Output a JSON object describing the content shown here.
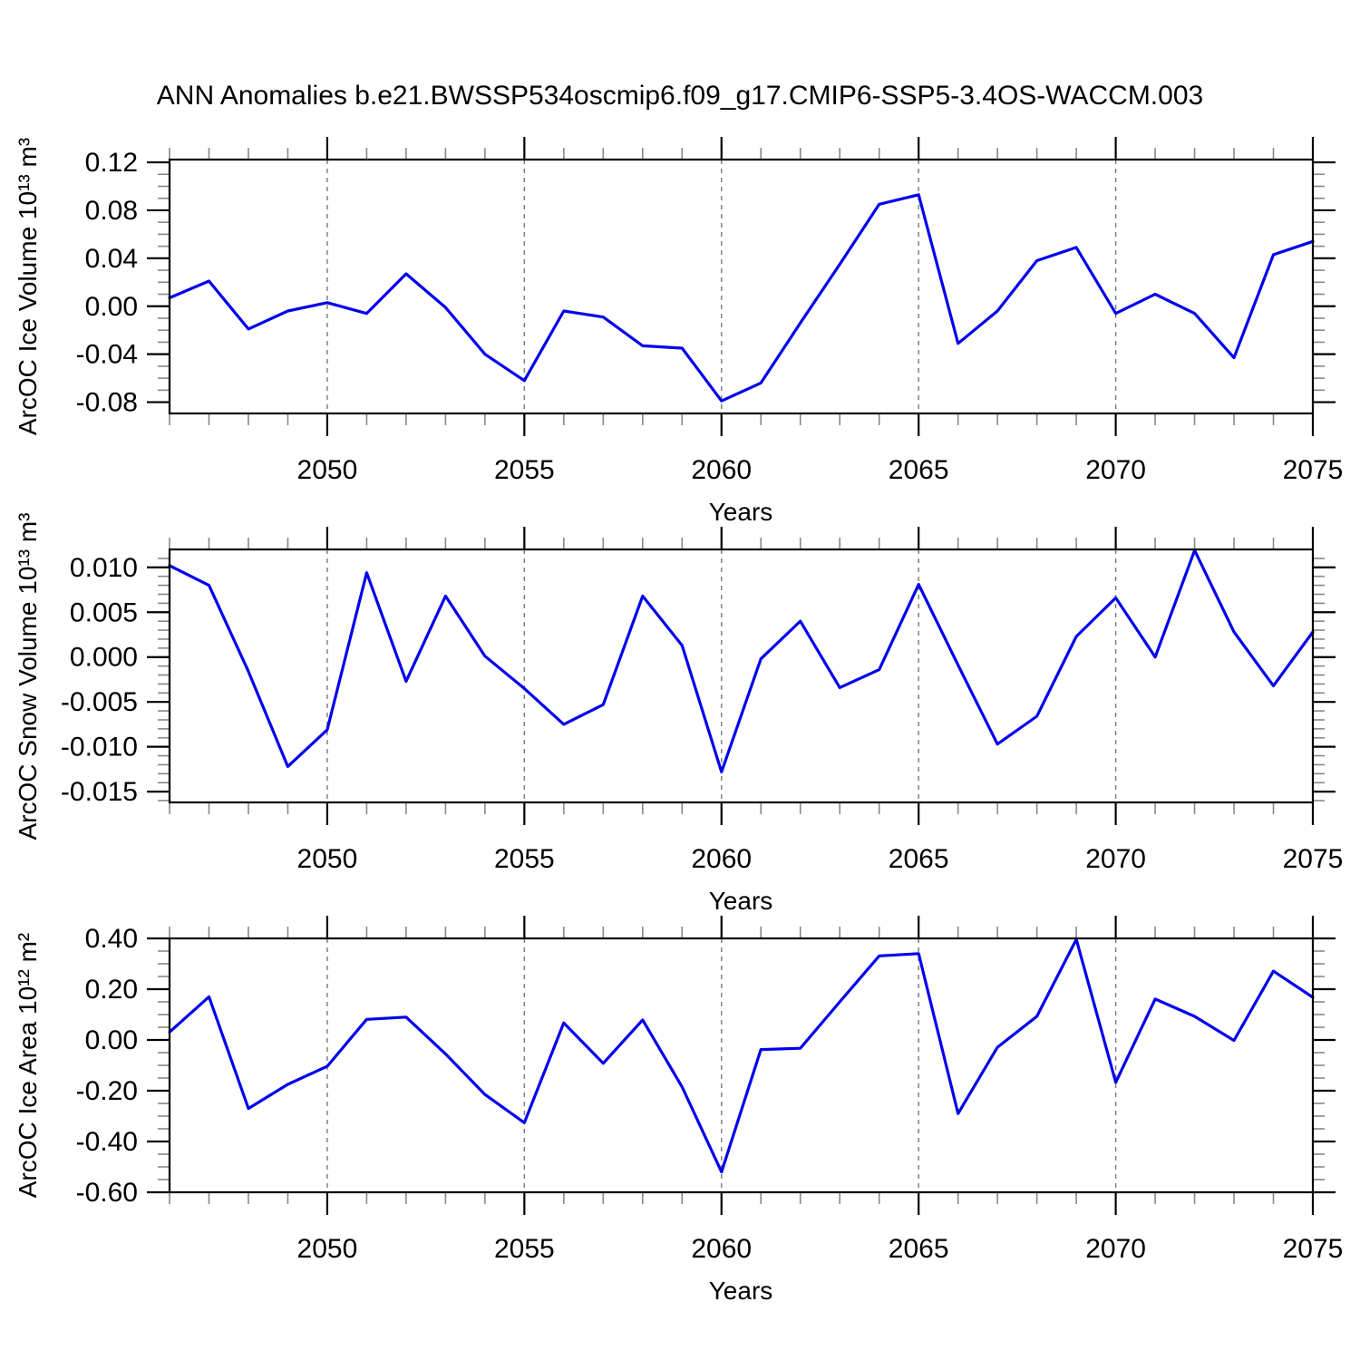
{
  "title": "ANN Anomalies b.e21.BWSSP534oscmip6.f09_g17.CMIP6-SSP5-3.4OS-WACCM.003",
  "colors": {
    "line": "#0000EE",
    "grid": "#787878",
    "frame": "#000000",
    "minor_tick": "#888888",
    "text": "#000000",
    "background": "#FFFFFF"
  },
  "chart_data": [
    {
      "type": "line",
      "name": "arcoc-ice-volume",
      "ylabel": "ArcOC Ice Volume 10¹³ m³",
      "xlabel": "Years",
      "legend": "none",
      "grid": "vertical-dashed",
      "x": [
        2046,
        2047,
        2048,
        2049,
        2050,
        2051,
        2052,
        2053,
        2054,
        2055,
        2056,
        2057,
        2058,
        2059,
        2060,
        2061,
        2062,
        2063,
        2064,
        2065,
        2066,
        2067,
        2068,
        2069,
        2070,
        2071,
        2072,
        2073,
        2074,
        2075
      ],
      "values": [
        0.007,
        0.021,
        -0.019,
        -0.004,
        0.003,
        -0.006,
        0.027,
        -0.001,
        -0.04,
        -0.062,
        -0.004,
        -0.009,
        -0.033,
        -0.035,
        -0.079,
        -0.064,
        -0.014,
        0.035,
        0.085,
        0.093,
        -0.031,
        -0.004,
        0.038,
        0.049,
        -0.006,
        0.01,
        -0.006,
        -0.043,
        0.043,
        0.054
      ],
      "xlim": [
        2046,
        2075
      ],
      "ylim": [
        -0.0894,
        0.1223
      ],
      "xticks": [
        2050,
        2055,
        2060,
        2065,
        2070,
        2075
      ],
      "xtick_labels": [
        "2050",
        "2055",
        "2060",
        "2065",
        "2070",
        "2075"
      ],
      "yticks": [
        0.12,
        0.08,
        0.04,
        0.0,
        -0.04,
        -0.08
      ],
      "ytick_labels": [
        "0.12",
        "0.08",
        "0.04",
        "0.00",
        "-0.04",
        "-0.08"
      ],
      "y_minor_step": 0.01,
      "x_minor_step": 1,
      "grid_x": [
        2050,
        2055,
        2060,
        2065,
        2070
      ]
    },
    {
      "type": "line",
      "name": "arcoc-snow-volume",
      "ylabel": "ArcOC Snow Volume 10¹³ m³",
      "xlabel": "Years",
      "legend": "none",
      "grid": "vertical-dashed",
      "x": [
        2046,
        2047,
        2048,
        2049,
        2050,
        2051,
        2052,
        2053,
        2054,
        2055,
        2056,
        2057,
        2058,
        2059,
        2060,
        2061,
        2062,
        2063,
        2064,
        2065,
        2066,
        2067,
        2068,
        2069,
        2070,
        2071,
        2072,
        2073,
        2074,
        2075
      ],
      "values": [
        0.0102,
        0.008,
        -0.0016,
        -0.0122,
        -0.0081,
        0.0094,
        -0.0027,
        0.0068,
        0.0001,
        -0.0035,
        -0.0075,
        -0.0053,
        0.0068,
        0.0013,
        -0.0128,
        -0.0002,
        0.004,
        -0.0034,
        -0.0014,
        0.0081,
        -0.0009,
        -0.0097,
        -0.0066,
        0.0023,
        0.0066,
        0.0,
        0.0119,
        0.0028,
        -0.0032,
        0.0028
      ],
      "xlim": [
        2046,
        2075
      ],
      "ylim": [
        -0.0162,
        0.012
      ],
      "xticks": [
        2050,
        2055,
        2060,
        2065,
        2070,
        2075
      ],
      "xtick_labels": [
        "2050",
        "2055",
        "2060",
        "2065",
        "2070",
        "2075"
      ],
      "yticks": [
        0.01,
        0.005,
        0.0,
        -0.005,
        -0.01,
        -0.015
      ],
      "ytick_labels": [
        "0.010",
        "0.005",
        "0.000",
        "-0.005",
        "-0.010",
        "-0.015"
      ],
      "y_minor_step": 0.001,
      "x_minor_step": 1,
      "grid_x": [
        2050,
        2055,
        2060,
        2065,
        2070
      ]
    },
    {
      "type": "line",
      "name": "arcoc-ice-area",
      "ylabel": "ArcOC Ice Area 10¹² m²",
      "xlabel": "Years",
      "legend": "none",
      "grid": "vertical-dashed",
      "x": [
        2046,
        2047,
        2048,
        2049,
        2050,
        2051,
        2052,
        2053,
        2054,
        2055,
        2056,
        2057,
        2058,
        2059,
        2060,
        2061,
        2062,
        2063,
        2064,
        2065,
        2066,
        2067,
        2068,
        2069,
        2070,
        2071,
        2072,
        2073,
        2074,
        2075
      ],
      "values": [
        0.031,
        0.17,
        -0.27,
        -0.175,
        -0.104,
        0.081,
        0.09,
        -0.055,
        -0.215,
        -0.326,
        0.067,
        -0.092,
        0.079,
        -0.185,
        -0.52,
        -0.038,
        -0.033,
        0.15,
        0.331,
        0.34,
        -0.29,
        -0.029,
        0.093,
        0.396,
        -0.167,
        0.161,
        0.093,
        -0.002,
        0.271,
        0.168
      ],
      "xlim": [
        2046,
        2075
      ],
      "ylim": [
        -0.6,
        0.4
      ],
      "xticks": [
        2050,
        2055,
        2060,
        2065,
        2070,
        2075
      ],
      "xtick_labels": [
        "2050",
        "2055",
        "2060",
        "2065",
        "2070",
        "2075"
      ],
      "yticks": [
        0.4,
        0.2,
        0.0,
        -0.2,
        -0.4,
        -0.6
      ],
      "ytick_labels": [
        "0.40",
        "0.20",
        "0.00",
        "-0.20",
        "-0.40",
        "-0.60"
      ],
      "y_minor_step": 0.05,
      "x_minor_step": 1,
      "grid_x": [
        2050,
        2055,
        2060,
        2065,
        2070
      ]
    }
  ]
}
